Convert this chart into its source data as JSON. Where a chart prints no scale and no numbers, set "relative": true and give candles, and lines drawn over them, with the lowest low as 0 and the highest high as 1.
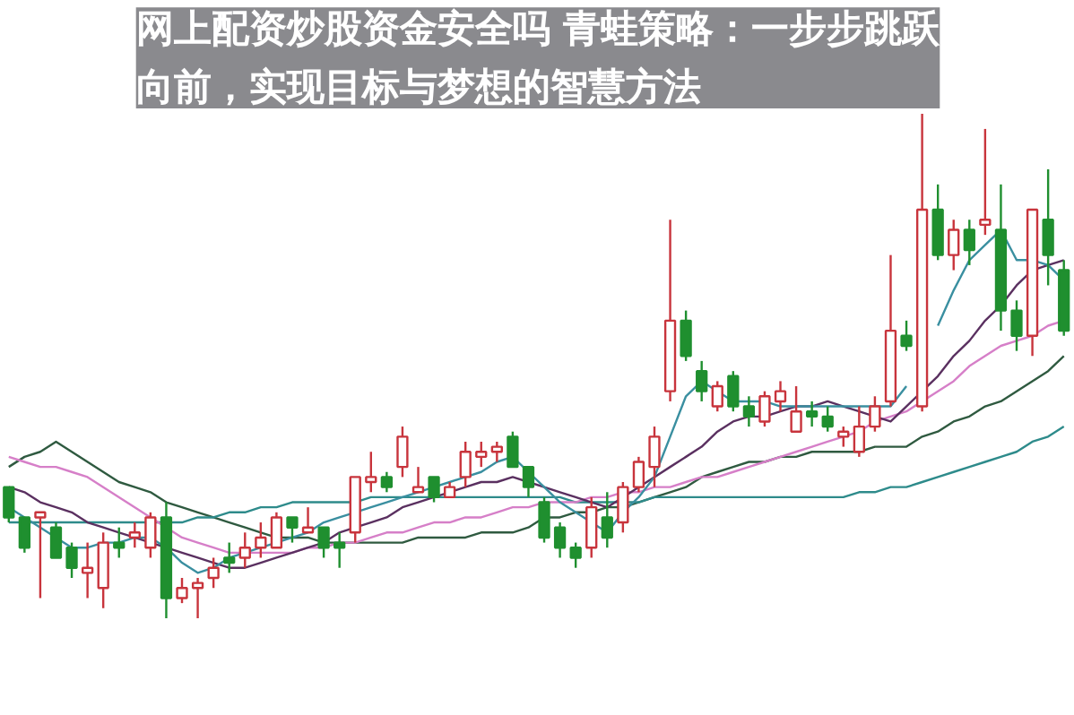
{
  "chart_data": {
    "type": "candlestick",
    "title": "网上配资炒股资金安全吗 青蛙策略：一步步跳跃向前，实现目标与梦想的智慧方法",
    "relative": true,
    "categories": [
      null,
      null,
      null,
      null,
      null,
      null,
      null,
      null,
      null,
      null,
      null,
      null,
      null,
      null,
      null,
      null,
      null,
      null,
      null,
      null,
      null,
      null,
      null,
      null,
      null,
      null,
      null,
      null,
      null,
      null,
      null,
      null,
      null,
      null,
      null,
      null,
      null,
      null,
      null,
      null,
      null,
      null,
      null,
      null,
      null,
      null,
      null,
      null,
      null,
      null,
      null,
      null,
      null,
      null,
      null,
      null,
      null,
      null,
      null,
      null,
      null,
      null,
      null,
      null,
      null,
      null,
      null,
      null
    ],
    "ohlc": [
      [
        0.26,
        0.26,
        0.19,
        0.2
      ],
      [
        0.2,
        0.2,
        0.13,
        0.14
      ],
      [
        0.2,
        0.21,
        0.04,
        0.21
      ],
      [
        0.18,
        0.19,
        0.12,
        0.12
      ],
      [
        0.14,
        0.15,
        0.08,
        0.1
      ],
      [
        0.09,
        0.15,
        0.04,
        0.1
      ],
      [
        0.06,
        0.17,
        0.02,
        0.15
      ],
      [
        0.15,
        0.18,
        0.12,
        0.14
      ],
      [
        0.16,
        0.19,
        0.14,
        0.17
      ],
      [
        0.14,
        0.21,
        0.12,
        0.2
      ],
      [
        0.2,
        0.23,
        0,
        0.04
      ],
      [
        0.04,
        0.08,
        0.03,
        0.06
      ],
      [
        0.06,
        0.08,
        0,
        0.07
      ],
      [
        0.08,
        0.12,
        0.06,
        0.1
      ],
      [
        0.12,
        0.15,
        0.09,
        0.11
      ],
      [
        0.12,
        0.17,
        0.1,
        0.14
      ],
      [
        0.14,
        0.19,
        0.12,
        0.16
      ],
      [
        0.14,
        0.21,
        0.14,
        0.2
      ],
      [
        0.2,
        0.2,
        0.15,
        0.18
      ],
      [
        0.17,
        0.22,
        0.17,
        0.18
      ],
      [
        0.18,
        0.18,
        0.12,
        0.14
      ],
      [
        0.15,
        0.17,
        0.1,
        0.14
      ],
      [
        0.17,
        0.28,
        0.15,
        0.28
      ],
      [
        0.27,
        0.33,
        0.25,
        0.28
      ],
      [
        0.28,
        0.29,
        0.25,
        0.26
      ],
      [
        0.3,
        0.38,
        0.28,
        0.36
      ],
      [
        0.25,
        0.3,
        0.25,
        0.26
      ],
      [
        0.28,
        0.28,
        0.23,
        0.24
      ],
      [
        0.24,
        0.27,
        0.24,
        0.26
      ],
      [
        0.28,
        0.35,
        0.26,
        0.33
      ],
      [
        0.32,
        0.35,
        0.3,
        0.33
      ],
      [
        0.33,
        0.35,
        0.31,
        0.34
      ],
      [
        0.36,
        0.37,
        0.3,
        0.3
      ],
      [
        0.3,
        0.3,
        0.24,
        0.26
      ],
      [
        0.23,
        0.24,
        0.15,
        0.16
      ],
      [
        0.18,
        0.19,
        0.12,
        0.14
      ],
      [
        0.14,
        0.15,
        0.1,
        0.12
      ],
      [
        0.14,
        0.24,
        0.12,
        0.22
      ],
      [
        0.2,
        0.25,
        0.14,
        0.16
      ],
      [
        0.19,
        0.27,
        0.17,
        0.26
      ],
      [
        0.26,
        0.32,
        0.25,
        0.31
      ],
      [
        0.3,
        0.38,
        0.26,
        0.36
      ],
      [
        0.45,
        0.79,
        0.43,
        0.59
      ],
      [
        0.59,
        0.61,
        0.51,
        0.52
      ],
      [
        0.49,
        0.51,
        0.43,
        0.45
      ],
      [
        0.42,
        0.47,
        0.41,
        0.46
      ],
      [
        0.48,
        0.49,
        0.41,
        0.42
      ],
      [
        0.42,
        0.44,
        0.38,
        0.4
      ],
      [
        0.39,
        0.45,
        0.38,
        0.44
      ],
      [
        0.43,
        0.47,
        0.41,
        0.45
      ],
      [
        0.37,
        0.46,
        0.37,
        0.41
      ],
      [
        0.41,
        0.43,
        0.38,
        0.4
      ],
      [
        0.4,
        0.42,
        0.37,
        0.38
      ],
      [
        0.36,
        0.38,
        0.34,
        0.37
      ],
      [
        0.33,
        0.42,
        0.32,
        0.38
      ],
      [
        0.38,
        0.44,
        0.37,
        0.42
      ],
      [
        0.43,
        0.72,
        0.42,
        0.57
      ],
      [
        0.56,
        0.59,
        0.53,
        0.54
      ],
      [
        0.42,
        1,
        0.41,
        0.81
      ],
      [
        0.81,
        0.86,
        0.71,
        0.72
      ],
      [
        0.72,
        0.79,
        0.69,
        0.77
      ],
      [
        0.77,
        0.79,
        0.7,
        0.73
      ],
      [
        0.78,
        0.97,
        0.76,
        0.79
      ],
      [
        0.77,
        0.86,
        0.57,
        0.61
      ],
      [
        0.61,
        0.63,
        0.53,
        0.56
      ],
      [
        0.56,
        0.81,
        0.52,
        0.81
      ],
      [
        0.79,
        0.89,
        0.66,
        0.72
      ],
      [
        0.69,
        0.71,
        0.56,
        0.57
      ]
    ],
    "series": [
      {
        "type": "line",
        "color": "#2f5a40",
        "values": [
          0.3,
          0.32,
          0.33,
          0.35,
          0.33,
          0.31,
          0.29,
          0.27,
          0.26,
          0.25,
          0.23,
          0.22,
          0.21,
          0.2,
          0.19,
          0.18,
          0.17,
          0.16,
          0.16,
          0.16,
          0.15,
          0.15,
          0.15,
          0.15,
          0.15,
          0.15,
          0.16,
          0.16,
          0.16,
          0.16,
          0.17,
          0.17,
          0.17,
          0.18,
          0.2,
          0.2,
          0.21,
          0.21,
          0.22,
          0.22,
          0.23,
          0.24,
          0.25,
          0.26,
          0.28,
          0.29,
          0.3,
          0.31,
          0.31,
          0.32,
          0.32,
          0.33,
          0.33,
          0.33,
          0.33,
          0.34,
          0.34,
          0.34,
          0.36,
          0.37,
          0.39,
          0.4,
          0.42,
          0.43,
          0.45,
          0.47,
          0.49,
          0.52
        ]
      },
      {
        "type": "line",
        "color": "#2e8b8b",
        "values": [
          0.19,
          0.19,
          0.19,
          0.19,
          0.19,
          0.19,
          0.19,
          0.19,
          0.19,
          0.19,
          0.19,
          0.19,
          0.2,
          0.2,
          0.21,
          0.21,
          0.22,
          0.22,
          0.23,
          0.23,
          0.23,
          0.23,
          0.23,
          0.24,
          0.24,
          0.24,
          0.24,
          0.24,
          0.24,
          0.24,
          0.24,
          0.24,
          0.24,
          0.24,
          0.24,
          0.24,
          0.23,
          0.23,
          0.23,
          0.23,
          0.23,
          0.24,
          0.24,
          0.24,
          0.24,
          0.24,
          0.24,
          0.24,
          0.24,
          0.24,
          0.24,
          0.24,
          0.24,
          0.24,
          0.25,
          0.25,
          0.26,
          0.26,
          0.27,
          0.28,
          0.29,
          0.3,
          0.31,
          0.32,
          0.33,
          0.35,
          0.36,
          0.38
        ]
      },
      {
        "type": "line",
        "color": "#d67fc8",
        "values": [
          0.32,
          0.31,
          0.3,
          0.3,
          0.29,
          0.28,
          0.26,
          0.24,
          0.22,
          0.2,
          0.18,
          0.16,
          0.15,
          0.14,
          0.13,
          0.13,
          0.13,
          0.13,
          0.13,
          0.14,
          0.14,
          0.15,
          0.15,
          0.16,
          0.17,
          0.17,
          0.18,
          0.19,
          0.19,
          0.2,
          0.2,
          0.21,
          0.22,
          0.22,
          0.23,
          0.23,
          0.23,
          0.24,
          0.24,
          0.25,
          0.25,
          0.26,
          0.26,
          0.27,
          0.28,
          0.28,
          0.29,
          0.3,
          0.31,
          0.32,
          0.33,
          0.34,
          0.35,
          0.36,
          0.37,
          0.39,
          0.4,
          0.41,
          0.43,
          0.45,
          0.47,
          0.5,
          0.52,
          0.54,
          0.55,
          0.56,
          0.58,
          0.59
        ]
      },
      {
        "type": "line",
        "color": "#5a3060",
        "values": [
          0.26,
          0.25,
          0.23,
          0.22,
          0.21,
          0.19,
          0.18,
          0.17,
          0.16,
          0.15,
          0.14,
          0.13,
          0.12,
          0.11,
          0.1,
          0.1,
          0.11,
          0.12,
          0.13,
          0.14,
          0.15,
          0.17,
          0.18,
          0.19,
          0.2,
          0.22,
          0.23,
          0.24,
          0.25,
          0.26,
          0.27,
          0.27,
          0.28,
          0.27,
          0.26,
          0.25,
          0.24,
          0.23,
          0.22,
          0.24,
          0.26,
          0.28,
          0.3,
          0.32,
          0.34,
          0.37,
          0.39,
          0.4,
          0.4,
          0.41,
          0.42,
          0.42,
          0.43,
          0.42,
          0.41,
          0.4,
          0.39,
          0.42,
          0.45,
          0.48,
          0.52,
          0.55,
          0.59,
          0.62,
          0.66,
          0.69,
          0.7,
          0.71
        ]
      },
      {
        "type": "line",
        "color": "#3a8fa0",
        "values": [
          0.22,
          0.2,
          0.18,
          0.16,
          0.14,
          0.14,
          0.15,
          0.15,
          0.16,
          0.16,
          0.14,
          0.11,
          0.09,
          0.1,
          0.12,
          0.13,
          0.14,
          0.15,
          0.16,
          0.17,
          0.19,
          0.2,
          0.21,
          0.22,
          0.23,
          0.24,
          0.25,
          0.26,
          0.27,
          0.28,
          0.29,
          0.31,
          0.32,
          0.29,
          0.26,
          0.23,
          0.21,
          0.19,
          0.17,
          0.21,
          0.24,
          0.28,
          0.36,
          0.44,
          0.47,
          0.45,
          0.43,
          0.43,
          0.43,
          0.42,
          0.42,
          0.42,
          0.42,
          0.42,
          0.42,
          0.42,
          0.42,
          0.46,
          null,
          0.58,
          0.65,
          0.71,
          0.74,
          0.77,
          0.71,
          0.71,
          0.7,
          0.67
        ]
      }
    ]
  }
}
